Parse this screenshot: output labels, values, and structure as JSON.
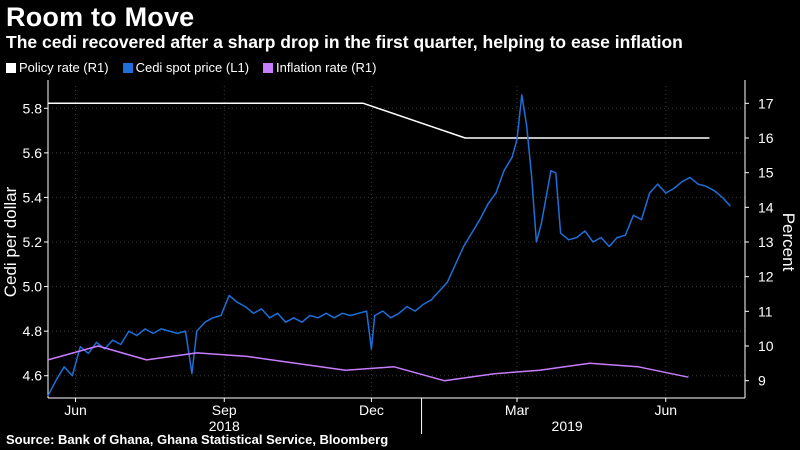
{
  "title": "Room to Move",
  "subtitle": "The cedi recovered after a sharp drop in the first quarter, helping to ease inflation",
  "source": "Source: Bank of Ghana, Ghana Statistical Service, Bloomberg",
  "colors": {
    "policy": "#ffffff",
    "cedi": "#1e6fd9",
    "inflation": "#c77dff"
  },
  "legend": [
    {
      "label": "Policy rate (R1)",
      "color": "#ffffff"
    },
    {
      "label": "Cedi spot price (L1)",
      "color": "#1e6fd9"
    },
    {
      "label": "Inflation rate (R1)",
      "color": "#c77dff"
    }
  ],
  "chart_data": {
    "type": "line",
    "xlabel": "",
    "ylabel_left": "Cedi per dollar",
    "ylabel_right": "Percent",
    "ylim_left": [
      4.5,
      5.9
    ],
    "ylim_right": [
      8.5,
      17.5
    ],
    "yticks_left": [
      "4.6",
      "4.8",
      "5.0",
      "5.2",
      "5.4",
      "5.6",
      "5.8"
    ],
    "yticks_right": [
      "9",
      "10",
      "11",
      "12",
      "13",
      "14",
      "15",
      "16",
      "17"
    ],
    "x_range": [
      "2018-05-15",
      "2019-07-20"
    ],
    "x_ticks": [
      {
        "label": "Jun",
        "date": "2018-06-01"
      },
      {
        "label": "Sep",
        "date": "2018-09-01"
      },
      {
        "label": "Dec",
        "date": "2018-12-01"
      },
      {
        "label": "Mar",
        "date": "2019-03-01"
      },
      {
        "label": "Jun",
        "date": "2019-06-01"
      }
    ],
    "year_labels": [
      {
        "label": "2018",
        "date": "2018-09-01"
      },
      {
        "label": "2019",
        "date": "2019-04-01"
      }
    ],
    "year_divider": "2019-01-01",
    "grid": true,
    "legend_position": "top-left",
    "series": [
      {
        "name": "Policy rate (R1)",
        "axis": "right",
        "points": [
          [
            "2018-05-15",
            17
          ],
          [
            "2018-11-26",
            17
          ],
          [
            "2019-01-28",
            16
          ],
          [
            "2019-06-28",
            16
          ]
        ]
      },
      {
        "name": "Cedi spot price (L1)",
        "axis": "left",
        "points": [
          [
            "2018-05-15",
            4.51
          ],
          [
            "2018-05-20",
            4.58
          ],
          [
            "2018-05-25",
            4.64
          ],
          [
            "2018-05-30",
            4.6
          ],
          [
            "2018-06-04",
            4.73
          ],
          [
            "2018-06-09",
            4.7
          ],
          [
            "2018-06-14",
            4.75
          ],
          [
            "2018-06-19",
            4.72
          ],
          [
            "2018-06-24",
            4.76
          ],
          [
            "2018-06-29",
            4.74
          ],
          [
            "2018-07-04",
            4.8
          ],
          [
            "2018-07-09",
            4.78
          ],
          [
            "2018-07-14",
            4.81
          ],
          [
            "2018-07-19",
            4.79
          ],
          [
            "2018-07-24",
            4.81
          ],
          [
            "2018-07-29",
            4.8
          ],
          [
            "2018-08-03",
            4.79
          ],
          [
            "2018-08-08",
            4.8
          ],
          [
            "2018-08-12",
            4.61
          ],
          [
            "2018-08-15",
            4.8
          ],
          [
            "2018-08-20",
            4.84
          ],
          [
            "2018-08-25",
            4.86
          ],
          [
            "2018-08-30",
            4.87
          ],
          [
            "2018-09-04",
            4.96
          ],
          [
            "2018-09-09",
            4.93
          ],
          [
            "2018-09-14",
            4.91
          ],
          [
            "2018-09-19",
            4.88
          ],
          [
            "2018-09-24",
            4.9
          ],
          [
            "2018-09-29",
            4.86
          ],
          [
            "2018-10-04",
            4.88
          ],
          [
            "2018-10-09",
            4.84
          ],
          [
            "2018-10-14",
            4.86
          ],
          [
            "2018-10-19",
            4.84
          ],
          [
            "2018-10-24",
            4.87
          ],
          [
            "2018-10-29",
            4.86
          ],
          [
            "2018-11-03",
            4.88
          ],
          [
            "2018-11-08",
            4.86
          ],
          [
            "2018-11-13",
            4.88
          ],
          [
            "2018-11-18",
            4.87
          ],
          [
            "2018-11-23",
            4.88
          ],
          [
            "2018-11-28",
            4.89
          ],
          [
            "2018-12-01",
            4.72
          ],
          [
            "2018-12-03",
            4.87
          ],
          [
            "2018-12-08",
            4.89
          ],
          [
            "2018-12-13",
            4.86
          ],
          [
            "2018-12-18",
            4.88
          ],
          [
            "2018-12-23",
            4.91
          ],
          [
            "2018-12-28",
            4.89
          ],
          [
            "2019-01-02",
            4.92
          ],
          [
            "2019-01-07",
            4.94
          ],
          [
            "2019-01-12",
            4.98
          ],
          [
            "2019-01-17",
            5.02
          ],
          [
            "2019-01-22",
            5.1
          ],
          [
            "2019-01-27",
            5.18
          ],
          [
            "2019-02-01",
            5.24
          ],
          [
            "2019-02-06",
            5.3
          ],
          [
            "2019-02-11",
            5.37
          ],
          [
            "2019-02-16",
            5.42
          ],
          [
            "2019-02-21",
            5.52
          ],
          [
            "2019-02-26",
            5.58
          ],
          [
            "2019-03-01",
            5.66
          ],
          [
            "2019-03-04",
            5.86
          ],
          [
            "2019-03-07",
            5.72
          ],
          [
            "2019-03-10",
            5.5
          ],
          [
            "2019-03-13",
            5.2
          ],
          [
            "2019-03-16",
            5.28
          ],
          [
            "2019-03-19",
            5.4
          ],
          [
            "2019-03-22",
            5.52
          ],
          [
            "2019-03-25",
            5.51
          ],
          [
            "2019-03-28",
            5.24
          ],
          [
            "2019-04-02",
            5.21
          ],
          [
            "2019-04-07",
            5.22
          ],
          [
            "2019-04-12",
            5.25
          ],
          [
            "2019-04-17",
            5.2
          ],
          [
            "2019-04-22",
            5.22
          ],
          [
            "2019-04-27",
            5.18
          ],
          [
            "2019-05-02",
            5.22
          ],
          [
            "2019-05-07",
            5.23
          ],
          [
            "2019-05-12",
            5.32
          ],
          [
            "2019-05-17",
            5.3
          ],
          [
            "2019-05-22",
            5.42
          ],
          [
            "2019-05-27",
            5.46
          ],
          [
            "2019-06-01",
            5.42
          ],
          [
            "2019-06-06",
            5.44
          ],
          [
            "2019-06-11",
            5.47
          ],
          [
            "2019-06-16",
            5.49
          ],
          [
            "2019-06-21",
            5.46
          ],
          [
            "2019-06-26",
            5.45
          ],
          [
            "2019-07-01",
            5.43
          ],
          [
            "2019-07-06",
            5.4
          ],
          [
            "2019-07-11",
            5.36
          ]
        ]
      },
      {
        "name": "Inflation rate (R1)",
        "axis": "right",
        "points": [
          [
            "2018-05-15",
            9.6
          ],
          [
            "2018-06-15",
            10.0
          ],
          [
            "2018-07-15",
            9.6
          ],
          [
            "2018-08-15",
            9.8
          ],
          [
            "2018-09-15",
            9.7
          ],
          [
            "2018-10-15",
            9.5
          ],
          [
            "2018-11-15",
            9.3
          ],
          [
            "2018-12-15",
            9.4
          ],
          [
            "2019-01-15",
            9.0
          ],
          [
            "2019-02-15",
            9.2
          ],
          [
            "2019-03-15",
            9.3
          ],
          [
            "2019-04-15",
            9.5
          ],
          [
            "2019-05-15",
            9.4
          ],
          [
            "2019-06-15",
            9.1
          ]
        ]
      }
    ]
  }
}
